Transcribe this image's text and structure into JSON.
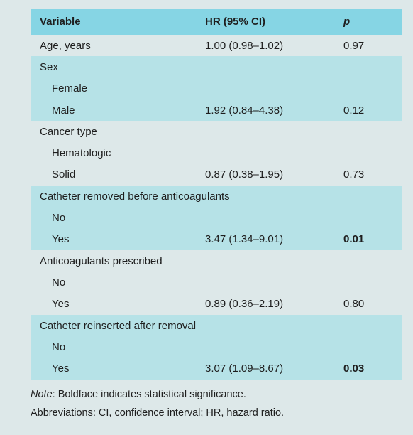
{
  "header": {
    "variable": "Variable",
    "hr": "HR (95% CI)",
    "p": "p"
  },
  "rows": [
    {
      "variable": "Age, years",
      "hr": "1.00 (0.98–1.02)",
      "p": "0.97"
    },
    {
      "variable": "Sex",
      "hr": "",
      "p": ""
    },
    {
      "variable": "Female",
      "hr": "",
      "p": ""
    },
    {
      "variable": "Male",
      "hr": "1.92 (0.84–4.38)",
      "p": "0.12"
    },
    {
      "variable": "Cancer type",
      "hr": "",
      "p": ""
    },
    {
      "variable": "Hematologic",
      "hr": "",
      "p": ""
    },
    {
      "variable": "Solid",
      "hr": "0.87 (0.38–1.95)",
      "p": "0.73"
    },
    {
      "variable": "Catheter removed before anticoagulants",
      "hr": "",
      "p": ""
    },
    {
      "variable": "No",
      "hr": "",
      "p": ""
    },
    {
      "variable": "Yes",
      "hr": "3.47 (1.34–9.01)",
      "p": "0.01"
    },
    {
      "variable": "Anticoagulants prescribed",
      "hr": "",
      "p": ""
    },
    {
      "variable": "No",
      "hr": "",
      "p": ""
    },
    {
      "variable": "Yes",
      "hr": "0.89 (0.36–2.19)",
      "p": "0.80"
    },
    {
      "variable": "Catheter reinserted after removal",
      "hr": "",
      "p": ""
    },
    {
      "variable": "No",
      "hr": "",
      "p": ""
    },
    {
      "variable": "Yes",
      "hr": "3.07 (1.09–8.67)",
      "p": "0.03"
    }
  ],
  "footnotes": {
    "note_label": "Note",
    "note_text": ": Boldface indicates statistical significance.",
    "abbreviations": "Abbreviations: CI, confidence interval; HR, hazard ratio."
  },
  "colors": {
    "header_bg": "#86d5e4",
    "shaded_bg": "#b6e2e7",
    "page_bg": "#dde8e9"
  }
}
